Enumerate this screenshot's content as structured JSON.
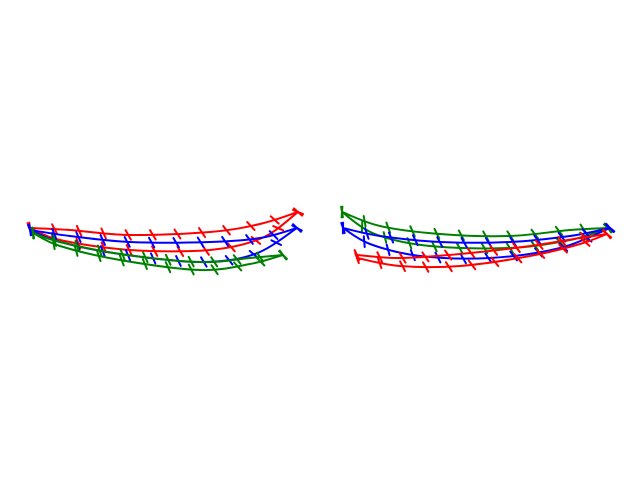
{
  "figure": {
    "background": "#ffffff",
    "colors": {
      "red": "#ff0000",
      "blue": "#0000ff",
      "green": "#008000"
    },
    "panels": [
      {
        "name": "left-eye-contours",
        "series": [
          "red",
          "blue",
          "green"
        ]
      },
      {
        "name": "right-eye-contours",
        "series": [
          "green",
          "blue",
          "red"
        ]
      }
    ]
  }
}
